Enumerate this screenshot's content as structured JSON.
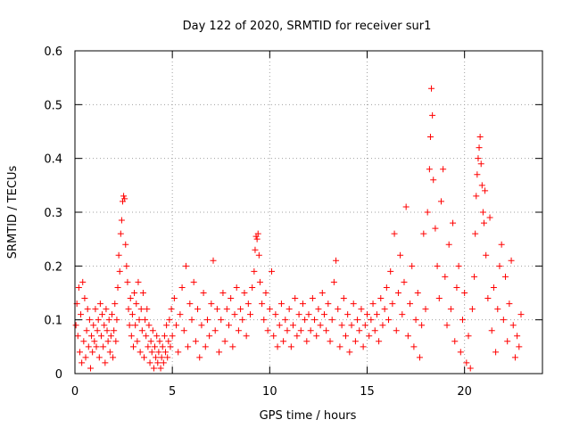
{
  "chart_data": {
    "type": "scatter",
    "title": "Day 122 of 2020, SRMTID for receiver sur1",
    "xlabel": "GPS time / hours",
    "ylabel": "SRMTID / TECUs",
    "xlim": [
      0,
      24
    ],
    "ylim": [
      0,
      0.6
    ],
    "xticks": [
      0,
      5,
      10,
      15,
      20
    ],
    "xtick_labels": [
      "0",
      "5",
      "10",
      "15",
      "20"
    ],
    "yticks": [
      0,
      0.1,
      0.2,
      0.3,
      0.4,
      0.5,
      0.6
    ],
    "ytick_labels": [
      "0",
      "0.1",
      "0.2",
      "0.3",
      "0.4",
      "0.5",
      "0.6"
    ],
    "grid": true,
    "marker": "+",
    "color": "#ff0000",
    "series": [
      {
        "name": "SRMTID",
        "points": [
          [
            0.05,
            0.09
          ],
          [
            0.1,
            0.13
          ],
          [
            0.15,
            0.07
          ],
          [
            0.2,
            0.16
          ],
          [
            0.25,
            0.04
          ],
          [
            0.3,
            0.11
          ],
          [
            0.35,
            0.02
          ],
          [
            0.4,
            0.17
          ],
          [
            0.45,
            0.06
          ],
          [
            0.5,
            0.14
          ],
          [
            0.55,
            0.03
          ],
          [
            0.6,
            0.08
          ],
          [
            0.65,
            0.12
          ],
          [
            0.7,
            0.05
          ],
          [
            0.75,
            0.1
          ],
          [
            0.8,
            0.01
          ],
          [
            0.85,
            0.07
          ],
          [
            0.9,
            0.04
          ],
          [
            0.95,
            0.09
          ],
          [
            1.0,
            0.06
          ],
          [
            1.05,
            0.12
          ],
          [
            1.1,
            0.05
          ],
          [
            1.15,
            0.08
          ],
          [
            1.2,
            0.1
          ],
          [
            1.25,
            0.03
          ],
          [
            1.3,
            0.13
          ],
          [
            1.35,
            0.07
          ],
          [
            1.4,
            0.11
          ],
          [
            1.45,
            0.05
          ],
          [
            1.5,
            0.09
          ],
          [
            1.55,
            0.02
          ],
          [
            1.6,
            0.12
          ],
          [
            1.65,
            0.08
          ],
          [
            1.7,
            0.06
          ],
          [
            1.75,
            0.1
          ],
          [
            1.8,
            0.04
          ],
          [
            1.85,
            0.07
          ],
          [
            1.9,
            0.11
          ],
          [
            1.95,
            0.03
          ],
          [
            2.0,
            0.08
          ],
          [
            2.05,
            0.13
          ],
          [
            2.1,
            0.06
          ],
          [
            2.15,
            0.1
          ],
          [
            2.2,
            0.16
          ],
          [
            2.25,
            0.22
          ],
          [
            2.3,
            0.19
          ],
          [
            2.35,
            0.26
          ],
          [
            2.4,
            0.285
          ],
          [
            2.45,
            0.32
          ],
          [
            2.5,
            0.33
          ],
          [
            2.55,
            0.325
          ],
          [
            2.6,
            0.24
          ],
          [
            2.65,
            0.2
          ],
          [
            2.7,
            0.17
          ],
          [
            2.75,
            0.12
          ],
          [
            2.8,
            0.09
          ],
          [
            2.85,
            0.14
          ],
          [
            2.9,
            0.07
          ],
          [
            2.95,
            0.11
          ],
          [
            3.0,
            0.05
          ],
          [
            3.05,
            0.15
          ],
          [
            3.1,
            0.09
          ],
          [
            3.15,
            0.13
          ],
          [
            3.2,
            0.06
          ],
          [
            3.25,
            0.17
          ],
          [
            3.3,
            0.1
          ],
          [
            3.35,
            0.04
          ],
          [
            3.4,
            0.12
          ],
          [
            3.45,
            0.08
          ],
          [
            3.5,
            0.15
          ],
          [
            3.55,
            0.03
          ],
          [
            3.6,
            0.1
          ],
          [
            3.65,
            0.07
          ],
          [
            3.7,
            0.12
          ],
          [
            3.75,
            0.05
          ],
          [
            3.8,
            0.09
          ],
          [
            3.85,
            0.02
          ],
          [
            3.9,
            0.06
          ],
          [
            3.95,
            0.04
          ],
          [
            4.0,
            0.08
          ],
          [
            4.05,
            0.01
          ],
          [
            4.1,
            0.05
          ],
          [
            4.15,
            0.03
          ],
          [
            4.2,
            0.07
          ],
          [
            4.25,
            0.02
          ],
          [
            4.3,
            0.04
          ],
          [
            4.35,
            0.06
          ],
          [
            4.4,
            0.01
          ],
          [
            4.45,
            0.03
          ],
          [
            4.5,
            0.05
          ],
          [
            4.55,
            0.02
          ],
          [
            4.6,
            0.07
          ],
          [
            4.65,
            0.04
          ],
          [
            4.7,
            0.09
          ],
          [
            4.75,
            0.03
          ],
          [
            4.8,
            0.06
          ],
          [
            4.85,
            0.1
          ],
          [
            4.9,
            0.05
          ],
          [
            4.95,
            0.12
          ],
          [
            5.0,
            0.07
          ],
          [
            5.1,
            0.14
          ],
          [
            5.2,
            0.09
          ],
          [
            5.3,
            0.04
          ],
          [
            5.4,
            0.11
          ],
          [
            5.5,
            0.16
          ],
          [
            5.6,
            0.08
          ],
          [
            5.7,
            0.2
          ],
          [
            5.8,
            0.05
          ],
          [
            5.9,
            0.13
          ],
          [
            6.0,
            0.1
          ],
          [
            6.1,
            0.17
          ],
          [
            6.2,
            0.06
          ],
          [
            6.3,
            0.12
          ],
          [
            6.4,
            0.03
          ],
          [
            6.5,
            0.09
          ],
          [
            6.6,
            0.15
          ],
          [
            6.7,
            0.05
          ],
          [
            6.8,
            0.1
          ],
          [
            6.9,
            0.07
          ],
          [
            7.0,
            0.13
          ],
          [
            7.1,
            0.21
          ],
          [
            7.2,
            0.08
          ],
          [
            7.3,
            0.12
          ],
          [
            7.4,
            0.04
          ],
          [
            7.5,
            0.1
          ],
          [
            7.6,
            0.15
          ],
          [
            7.7,
            0.06
          ],
          [
            7.8,
            0.12
          ],
          [
            7.9,
            0.09
          ],
          [
            8.0,
            0.14
          ],
          [
            8.1,
            0.05
          ],
          [
            8.2,
            0.11
          ],
          [
            8.3,
            0.16
          ],
          [
            8.4,
            0.08
          ],
          [
            8.5,
            0.12
          ],
          [
            8.6,
            0.1
          ],
          [
            8.7,
            0.15
          ],
          [
            8.8,
            0.07
          ],
          [
            8.9,
            0.13
          ],
          [
            9.0,
            0.11
          ],
          [
            9.1,
            0.16
          ],
          [
            9.2,
            0.19
          ],
          [
            9.25,
            0.23
          ],
          [
            9.3,
            0.255
          ],
          [
            9.35,
            0.25
          ],
          [
            9.4,
            0.26
          ],
          [
            9.45,
            0.22
          ],
          [
            9.5,
            0.17
          ],
          [
            9.6,
            0.13
          ],
          [
            9.7,
            0.1
          ],
          [
            9.8,
            0.15
          ],
          [
            9.9,
            0.08
          ],
          [
            10.0,
            0.12
          ],
          [
            10.1,
            0.19
          ],
          [
            10.2,
            0.07
          ],
          [
            10.3,
            0.11
          ],
          [
            10.4,
            0.05
          ],
          [
            10.5,
            0.09
          ],
          [
            10.6,
            0.13
          ],
          [
            10.7,
            0.06
          ],
          [
            10.8,
            0.1
          ],
          [
            10.9,
            0.08
          ],
          [
            11.0,
            0.12
          ],
          [
            11.1,
            0.05
          ],
          [
            11.2,
            0.09
          ],
          [
            11.3,
            0.14
          ],
          [
            11.4,
            0.07
          ],
          [
            11.5,
            0.11
          ],
          [
            11.6,
            0.08
          ],
          [
            11.7,
            0.13
          ],
          [
            11.8,
            0.1
          ],
          [
            11.9,
            0.06
          ],
          [
            12.0,
            0.11
          ],
          [
            12.1,
            0.08
          ],
          [
            12.2,
            0.14
          ],
          [
            12.3,
            0.1
          ],
          [
            12.4,
            0.07
          ],
          [
            12.5,
            0.12
          ],
          [
            12.6,
            0.09
          ],
          [
            12.7,
            0.15
          ],
          [
            12.8,
            0.11
          ],
          [
            12.9,
            0.08
          ],
          [
            13.0,
            0.13
          ],
          [
            13.1,
            0.06
          ],
          [
            13.2,
            0.1
          ],
          [
            13.3,
            0.17
          ],
          [
            13.4,
            0.21
          ],
          [
            13.5,
            0.12
          ],
          [
            13.6,
            0.05
          ],
          [
            13.7,
            0.09
          ],
          [
            13.8,
            0.14
          ],
          [
            13.9,
            0.07
          ],
          [
            14.0,
            0.11
          ],
          [
            14.1,
            0.04
          ],
          [
            14.2,
            0.09
          ],
          [
            14.3,
            0.13
          ],
          [
            14.4,
            0.06
          ],
          [
            14.5,
            0.1
          ],
          [
            14.6,
            0.08
          ],
          [
            14.7,
            0.12
          ],
          [
            14.8,
            0.05
          ],
          [
            14.9,
            0.09
          ],
          [
            15.0,
            0.11
          ],
          [
            15.1,
            0.07
          ],
          [
            15.2,
            0.1
          ],
          [
            15.3,
            0.13
          ],
          [
            15.4,
            0.08
          ],
          [
            15.5,
            0.11
          ],
          [
            15.6,
            0.06
          ],
          [
            15.7,
            0.14
          ],
          [
            15.8,
            0.09
          ],
          [
            15.9,
            0.12
          ],
          [
            16.0,
            0.16
          ],
          [
            16.1,
            0.1
          ],
          [
            16.2,
            0.19
          ],
          [
            16.3,
            0.13
          ],
          [
            16.4,
            0.26
          ],
          [
            16.5,
            0.08
          ],
          [
            16.6,
            0.15
          ],
          [
            16.7,
            0.22
          ],
          [
            16.8,
            0.11
          ],
          [
            16.9,
            0.17
          ],
          [
            17.0,
            0.31
          ],
          [
            17.1,
            0.07
          ],
          [
            17.2,
            0.13
          ],
          [
            17.3,
            0.2
          ],
          [
            17.4,
            0.05
          ],
          [
            17.5,
            0.1
          ],
          [
            17.6,
            0.15
          ],
          [
            17.7,
            0.03
          ],
          [
            17.8,
            0.09
          ],
          [
            17.9,
            0.26
          ],
          [
            18.0,
            0.12
          ],
          [
            18.1,
            0.3
          ],
          [
            18.2,
            0.38
          ],
          [
            18.25,
            0.44
          ],
          [
            18.3,
            0.53
          ],
          [
            18.35,
            0.48
          ],
          [
            18.4,
            0.36
          ],
          [
            18.5,
            0.27
          ],
          [
            18.6,
            0.2
          ],
          [
            18.7,
            0.14
          ],
          [
            18.8,
            0.32
          ],
          [
            18.9,
            0.38
          ],
          [
            19.0,
            0.18
          ],
          [
            19.1,
            0.09
          ],
          [
            19.2,
            0.24
          ],
          [
            19.3,
            0.12
          ],
          [
            19.4,
            0.28
          ],
          [
            19.5,
            0.06
          ],
          [
            19.6,
            0.16
          ],
          [
            19.7,
            0.2
          ],
          [
            19.8,
            0.04
          ],
          [
            19.9,
            0.1
          ],
          [
            20.0,
            0.15
          ],
          [
            20.1,
            0.02
          ],
          [
            20.2,
            0.07
          ],
          [
            20.3,
            0.01
          ],
          [
            20.4,
            0.12
          ],
          [
            20.5,
            0.18
          ],
          [
            20.55,
            0.26
          ],
          [
            20.6,
            0.33
          ],
          [
            20.65,
            0.37
          ],
          [
            20.7,
            0.4
          ],
          [
            20.75,
            0.42
          ],
          [
            20.8,
            0.44
          ],
          [
            20.85,
            0.39
          ],
          [
            20.9,
            0.35
          ],
          [
            20.95,
            0.3
          ],
          [
            21.0,
            0.28
          ],
          [
            21.05,
            0.34
          ],
          [
            21.1,
            0.22
          ],
          [
            21.2,
            0.14
          ],
          [
            21.3,
            0.29
          ],
          [
            21.4,
            0.08
          ],
          [
            21.5,
            0.16
          ],
          [
            21.6,
            0.04
          ],
          [
            21.7,
            0.12
          ],
          [
            21.8,
            0.2
          ],
          [
            21.9,
            0.24
          ],
          [
            22.0,
            0.1
          ],
          [
            22.1,
            0.18
          ],
          [
            22.2,
            0.06
          ],
          [
            22.3,
            0.13
          ],
          [
            22.4,
            0.21
          ],
          [
            22.5,
            0.09
          ],
          [
            22.6,
            0.03
          ],
          [
            22.7,
            0.07
          ],
          [
            22.8,
            0.05
          ],
          [
            22.9,
            0.11
          ]
        ]
      }
    ]
  }
}
